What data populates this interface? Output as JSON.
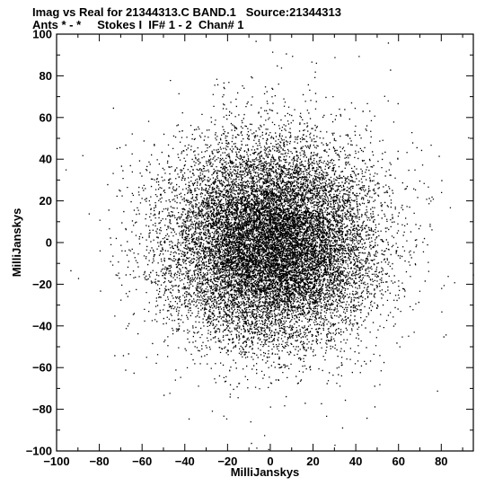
{
  "header": {
    "title": "Imag vs Real for 21344313.C BAND.1   Source:21344313",
    "subtitle": "Ants * - *     Stokes I  IF# 1 - 2  Chan# 1"
  },
  "chart_data": {
    "type": "scatter",
    "title": "Imag vs Real for 21344313.C BAND.1   Source:21344313",
    "subtitle": "Ants * - *     Stokes I  IF# 1 - 2  Chan# 1",
    "xlabel": "MilliJanskys",
    "ylabel": "MilliJanskys",
    "xlim": [
      -100,
      95
    ],
    "ylim": [
      -100,
      100
    ],
    "xticks": [
      -100,
      -80,
      -60,
      -40,
      -20,
      0,
      20,
      40,
      60,
      80
    ],
    "xtick_labels": [
      "−100",
      "−80",
      "−60",
      "−40",
      "−20",
      "0",
      "20",
      "40",
      "60",
      "80"
    ],
    "yticks": [
      -100,
      -80,
      -60,
      -40,
      -20,
      0,
      20,
      40,
      60,
      80,
      100
    ],
    "ytick_labels": [
      "−100",
      "−80",
      "−60",
      "−40",
      "−20",
      "0",
      "20",
      "40",
      "60",
      "80",
      "100"
    ],
    "grid": false,
    "legend": "none",
    "marker_color": "#000000",
    "distribution": {
      "form": "approximately circular gaussian cloud",
      "center_x": 0,
      "center_y": 0,
      "sigma_x": 24,
      "sigma_y": 24,
      "approx_point_count": 16000
    },
    "outliers": [
      {
        "x": 55,
        "y": 96
      },
      {
        "x": 30,
        "y": 89
      },
      {
        "x": 3,
        "y": 85
      },
      {
        "x": 5,
        "y": 84
      },
      {
        "x": -47,
        "y": 78
      },
      {
        "x": -88,
        "y": 42
      },
      {
        "x": -80,
        "y": 11
      },
      {
        "x": -85,
        "y": 14
      },
      {
        "x": -90,
        "y": -17
      },
      {
        "x": -73,
        "y": -35
      },
      {
        "x": -73,
        "y": -54
      },
      {
        "x": -69,
        "y": -54
      },
      {
        "x": -50,
        "y": -73
      },
      {
        "x": -22,
        "y": -83
      },
      {
        "x": 45,
        "y": -84
      },
      {
        "x": 78,
        "y": -71
      },
      {
        "x": 83,
        "y": -16
      },
      {
        "x": 84,
        "y": 17
      },
      {
        "x": 86,
        "y": -19
      },
      {
        "x": 80,
        "y": 30
      },
      {
        "x": 66,
        "y": 53
      },
      {
        "x": 56,
        "y": 83
      },
      {
        "x": -1,
        "y": -99
      },
      {
        "x": 30,
        "y": -97
      },
      {
        "x": 80,
        "y": -33
      },
      {
        "x": 75,
        "y": 47
      }
    ]
  }
}
